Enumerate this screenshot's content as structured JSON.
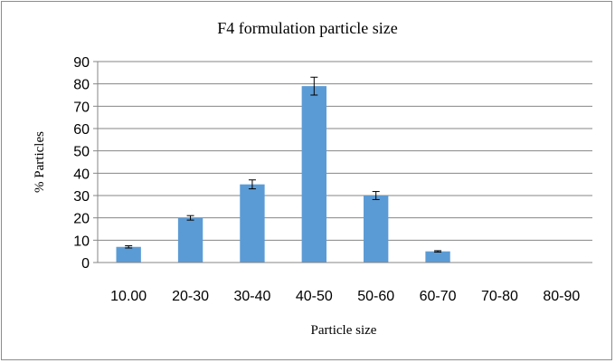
{
  "chart_data": {
    "type": "bar",
    "title": "F4 formulation particle size",
    "xlabel": "Particle size",
    "ylabel": "% Particles",
    "ylim": [
      0,
      90
    ],
    "yticks": [
      "0",
      "10",
      "20",
      "30",
      "40",
      "50",
      "60",
      "70",
      "80",
      "90"
    ],
    "categories": [
      "10.00",
      "20-30",
      "30-40",
      "40-50",
      "50-60",
      "60-70",
      "70-80",
      "80-90"
    ],
    "values": [
      7,
      20,
      35,
      79,
      30,
      5,
      0,
      0
    ],
    "errors": [
      0.5,
      1.0,
      2.0,
      4.0,
      1.8,
      0.3,
      0,
      0
    ],
    "grid": true,
    "bar_color": "#5b9bd5",
    "grid_color": "#868686"
  }
}
